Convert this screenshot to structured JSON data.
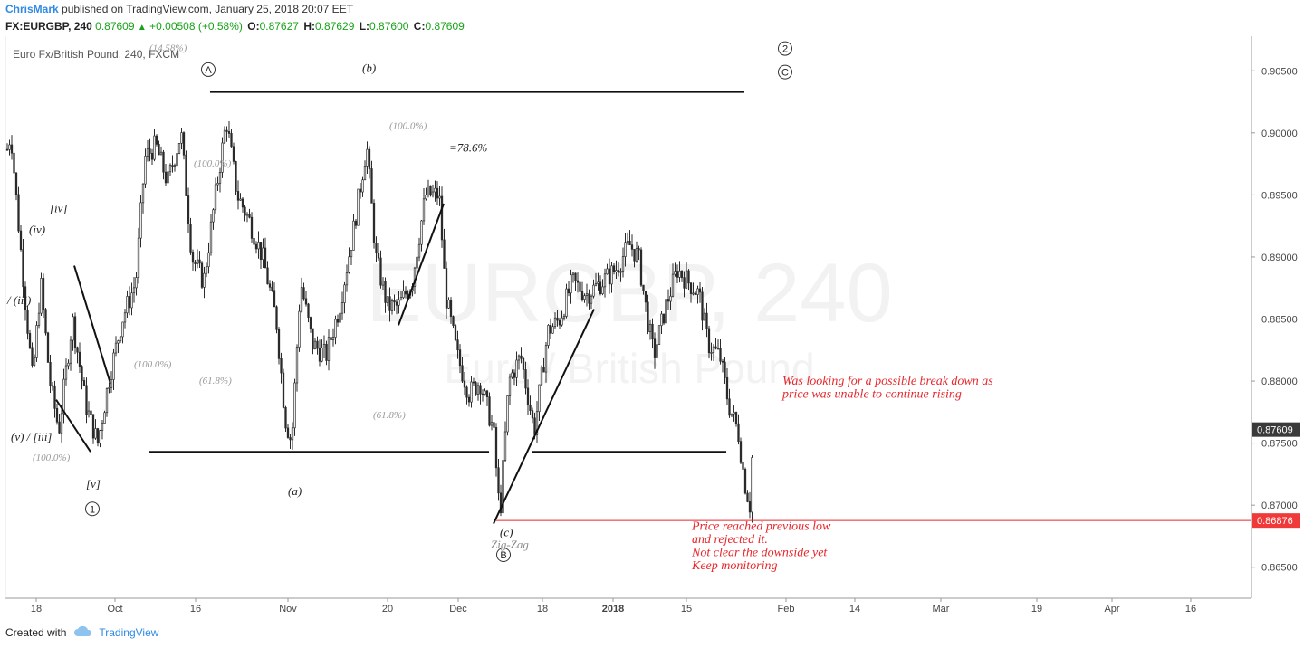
{
  "header": {
    "author": "ChrisMark",
    "published": "published on TradingView.com, January 25, 2018 20:07 EET"
  },
  "quote": {
    "symbol": "FX:EURGBP, 240",
    "last": "0.87609",
    "change": "+0.00508 (+0.58%)",
    "open_label": "O:",
    "open": "0.87627",
    "high_label": "H:",
    "high": "0.87629",
    "low_label": "L:",
    "low": "0.87600",
    "close_label": "C:",
    "close": "0.87609"
  },
  "footer": {
    "created_with": "Created with",
    "brand": "TradingView"
  },
  "colors": {
    "accent": "#2f8ae5",
    "up": "#17a317",
    "annotation": "#e8262b",
    "price_tag": "#3a3a3a",
    "low_tag": "#f03a3a",
    "candle": "#2b2b2b"
  },
  "chart_data": {
    "type": "candlestick",
    "title": "Euro Fx/British Pound, 240, FXCM",
    "watermark_symbol": "EURGBP, 240",
    "watermark_name": "Euro / British Pound",
    "x_tick_labels": [
      "18",
      "Oct",
      "16",
      "Nov",
      "20",
      "Dec",
      "18",
      "2018",
      "15",
      "Feb",
      "14",
      "Mar",
      "19",
      "Apr",
      "16"
    ],
    "y_tick_labels": [
      "0.90500",
      "0.90000",
      "0.89500",
      "0.89000",
      "0.88500",
      "0.88000",
      "0.87500",
      "0.87000",
      "0.86500"
    ],
    "ylim": [
      0.8625,
      0.9075
    ],
    "last_price": "0.87609",
    "low_price": "0.86876",
    "price_path": [
      {
        "x": 0,
        "y": 0.904
      },
      {
        "x": 6,
        "y": 0.898
      },
      {
        "x": 12,
        "y": 0.9
      },
      {
        "x": 20,
        "y": 0.893
      },
      {
        "x": 26,
        "y": 0.888
      },
      {
        "x": 36,
        "y": 0.88
      },
      {
        "x": 45,
        "y": 0.888
      },
      {
        "x": 55,
        "y": 0.88
      },
      {
        "x": 65,
        "y": 0.876
      },
      {
        "x": 80,
        "y": 0.885
      },
      {
        "x": 95,
        "y": 0.878
      },
      {
        "x": 108,
        "y": 0.875
      },
      {
        "x": 120,
        "y": 0.88
      },
      {
        "x": 135,
        "y": 0.885
      },
      {
        "x": 150,
        "y": 0.888
      },
      {
        "x": 160,
        "y": 0.898
      },
      {
        "x": 172,
        "y": 0.899
      },
      {
        "x": 185,
        "y": 0.896
      },
      {
        "x": 200,
        "y": 0.9
      },
      {
        "x": 212,
        "y": 0.89
      },
      {
        "x": 225,
        "y": 0.888
      },
      {
        "x": 238,
        "y": 0.895
      },
      {
        "x": 250,
        "y": 0.901
      },
      {
        "x": 262,
        "y": 0.895
      },
      {
        "x": 275,
        "y": 0.893
      },
      {
        "x": 290,
        "y": 0.89
      },
      {
        "x": 305,
        "y": 0.885
      },
      {
        "x": 315,
        "y": 0.877
      },
      {
        "x": 322,
        "y": 0.875
      },
      {
        "x": 332,
        "y": 0.888
      },
      {
        "x": 345,
        "y": 0.883
      },
      {
        "x": 360,
        "y": 0.882
      },
      {
        "x": 375,
        "y": 0.886
      },
      {
        "x": 390,
        "y": 0.892
      },
      {
        "x": 405,
        "y": 0.899
      },
      {
        "x": 415,
        "y": 0.89
      },
      {
        "x": 428,
        "y": 0.886
      },
      {
        "x": 440,
        "y": 0.886
      },
      {
        "x": 455,
        "y": 0.888
      },
      {
        "x": 470,
        "y": 0.895
      },
      {
        "x": 485,
        "y": 0.895
      },
      {
        "x": 492,
        "y": 0.887
      },
      {
        "x": 505,
        "y": 0.882
      },
      {
        "x": 518,
        "y": 0.879
      },
      {
        "x": 530,
        "y": 0.88
      },
      {
        "x": 545,
        "y": 0.876
      },
      {
        "x": 552,
        "y": 0.869
      },
      {
        "x": 562,
        "y": 0.88
      },
      {
        "x": 575,
        "y": 0.882
      },
      {
        "x": 590,
        "y": 0.876
      },
      {
        "x": 605,
        "y": 0.884
      },
      {
        "x": 618,
        "y": 0.885
      },
      {
        "x": 632,
        "y": 0.888
      },
      {
        "x": 648,
        "y": 0.887
      },
      {
        "x": 665,
        "y": 0.888
      },
      {
        "x": 680,
        "y": 0.889
      },
      {
        "x": 695,
        "y": 0.891
      },
      {
        "x": 705,
        "y": 0.89
      },
      {
        "x": 715,
        "y": 0.885
      },
      {
        "x": 722,
        "y": 0.882
      },
      {
        "x": 735,
        "y": 0.886
      },
      {
        "x": 748,
        "y": 0.889
      },
      {
        "x": 760,
        "y": 0.888
      },
      {
        "x": 772,
        "y": 0.887
      },
      {
        "x": 782,
        "y": 0.883
      },
      {
        "x": 795,
        "y": 0.882
      },
      {
        "x": 805,
        "y": 0.878
      },
      {
        "x": 815,
        "y": 0.876
      },
      {
        "x": 822,
        "y": 0.872
      },
      {
        "x": 828,
        "y": 0.87
      },
      {
        "x": 832,
        "y": 0.8761
      }
    ],
    "horizontal_lines": [
      {
        "from_x": 232,
        "to_x": 822,
        "y": 0.9033
      },
      {
        "from_x": 165,
        "to_x": 540,
        "y": 0.8743
      },
      {
        "from_x": 588,
        "to_x": 802,
        "y": 0.8743
      }
    ],
    "low_line": {
      "from_x": 548,
      "y": 0.86876
    },
    "trend_lines": [
      {
        "x1": 82,
        "y1": 0.8893,
        "x2": 122,
        "y2": 0.8798
      },
      {
        "x1": 62,
        "y1": 0.8785,
        "x2": 100,
        "y2": 0.8743
      },
      {
        "x1": 440,
        "y1": 0.8845,
        "x2": 490,
        "y2": 0.8943
      },
      {
        "x1": 545,
        "y1": 0.8685,
        "x2": 656,
        "y2": 0.8858
      }
    ],
    "fib_labels": [
      {
        "x": 36,
        "y": 0.8736,
        "text": "(100.0%)"
      },
      {
        "x": 148,
        "y": 0.8811,
        "text": "(100.0%)"
      },
      {
        "x": 214,
        "y": 0.8973,
        "text": "(100.0%)"
      },
      {
        "x": 220,
        "y": 0.8798,
        "text": "(61.8%)"
      },
      {
        "x": 430,
        "y": 0.9003,
        "text": "(100.0%)"
      },
      {
        "x": 412,
        "y": 0.877,
        "text": "(61.8%)"
      },
      {
        "x": 165,
        "y": 0.9066,
        "text": "(14.58%)"
      }
    ],
    "wave_labels": [
      {
        "x": 55,
        "y": 0.8936,
        "text": "[iv]"
      },
      {
        "x": 32,
        "y": 0.8919,
        "text": "(iv)"
      },
      {
        "x": 8,
        "y": 0.8862,
        "text": "/ (iii)"
      },
      {
        "x": 12,
        "y": 0.8752,
        "text": "(v) / [iii]"
      },
      {
        "x": 95,
        "y": 0.8714,
        "text": "[v]"
      },
      {
        "x": 318,
        "y": 0.8708,
        "text": "(a)"
      },
      {
        "x": 400,
        "y": 0.9049,
        "text": "(b)"
      },
      {
        "x": 552,
        "y": 0.8675,
        "text": "(c)"
      },
      {
        "x": 496,
        "y": 0.8985,
        "text": "=78.6%"
      }
    ],
    "circle_labels": [
      {
        "x": 102,
        "y": 0.8697,
        "text": "1"
      },
      {
        "x": 230,
        "y": 0.9051,
        "text": "A"
      },
      {
        "x": 556,
        "y": 0.866,
        "text": "B"
      },
      {
        "x": 867,
        "y": 0.9068,
        "text": "2"
      },
      {
        "x": 867,
        "y": 0.9049,
        "text": "C"
      }
    ],
    "pattern_label": {
      "x": 542,
      "y": 0.8665,
      "text": "Zig-Zag"
    },
    "annotations": [
      {
        "x": 864,
        "y": 0.8797,
        "lines": [
          "Was looking for a possible break down as",
          "price was unable to continue rising"
        ]
      },
      {
        "x": 764,
        "y": 0.868,
        "lines": [
          "Price reached previous low",
          "and rejected it.",
          "Not clear the downside yet",
          "Keep monitoring"
        ]
      }
    ]
  }
}
